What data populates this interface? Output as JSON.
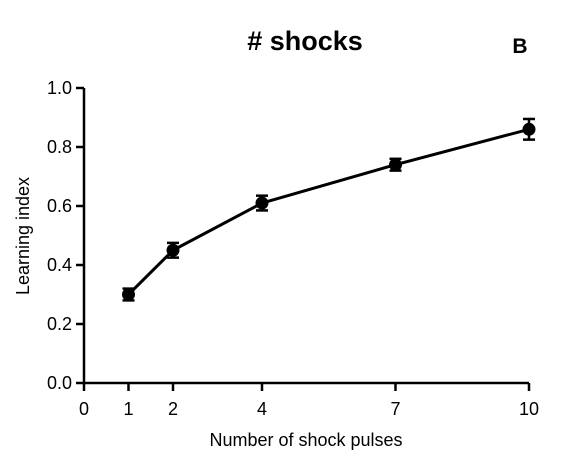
{
  "chart_data": {
    "type": "line",
    "title": "# shocks",
    "panel_label": "B",
    "xlabel": "Number of shock pulses",
    "ylabel": "Learning index",
    "xlim": [
      0,
      10
    ],
    "ylim": [
      0,
      1.0
    ],
    "x_ticks": [
      0,
      1,
      2,
      4,
      7,
      10
    ],
    "x_tick_labels": [
      "0",
      "1",
      "2",
      "4",
      "7",
      "10"
    ],
    "y_ticks": [
      0,
      0.2,
      0.4,
      0.6,
      0.8,
      1.0
    ],
    "y_tick_labels": [
      "0.0",
      "0.2",
      "0.4",
      "0.6",
      "0.8",
      "1.0"
    ],
    "grid": false,
    "series": [
      {
        "x": [
          1,
          2,
          4,
          7,
          10
        ],
        "y": [
          0.3,
          0.45,
          0.61,
          0.74,
          0.86
        ],
        "error": [
          0.02,
          0.025,
          0.025,
          0.02,
          0.035
        ],
        "color": "#000000",
        "marker": "circle"
      }
    ]
  }
}
